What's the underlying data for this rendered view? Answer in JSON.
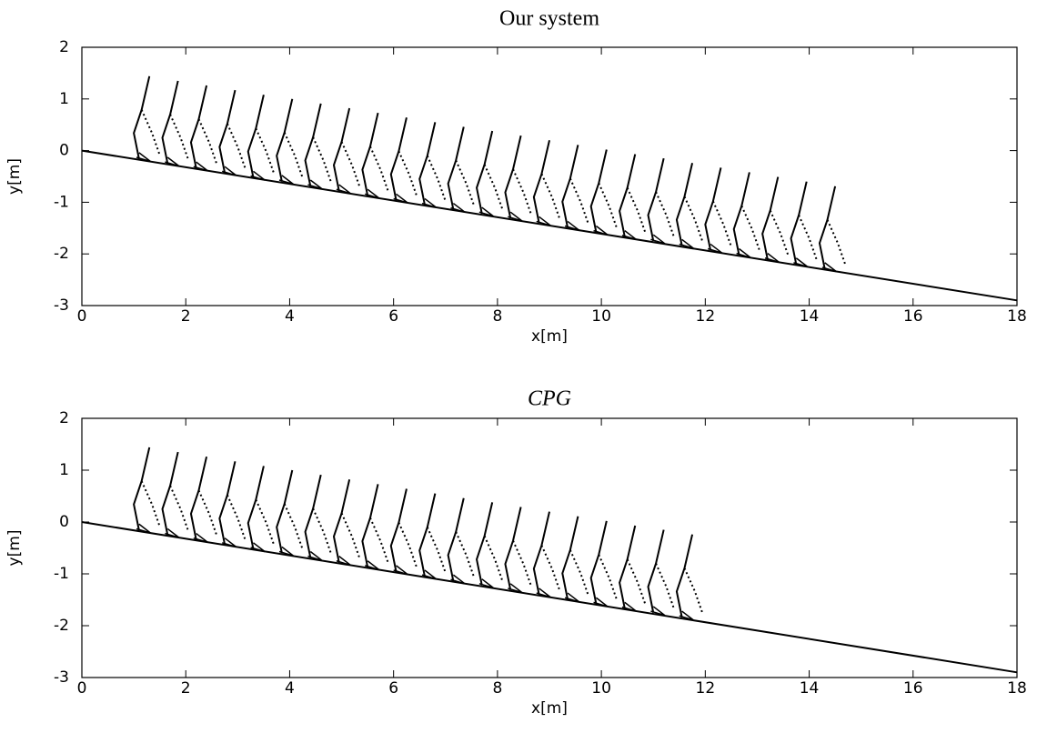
{
  "chart_data": [
    {
      "type": "line",
      "title": "Our system",
      "xlabel": "x[m]",
      "ylabel": "y[m]",
      "xlim": [
        0,
        18
      ],
      "ylim": [
        -3,
        2
      ],
      "xticks": [
        0,
        2,
        4,
        6,
        8,
        10,
        12,
        14,
        16,
        18
      ],
      "yticks": [
        -3,
        -2,
        -1,
        0,
        1,
        2
      ],
      "slope": {
        "x": [
          0,
          18
        ],
        "y": [
          0,
          -2.9
        ]
      },
      "figures": {
        "x": [
          1.0,
          1.55,
          2.1,
          2.65,
          3.2,
          3.75,
          4.3,
          4.85,
          5.4,
          5.95,
          6.5,
          7.05,
          7.6,
          8.15,
          8.7,
          9.25,
          9.8,
          10.35,
          10.9,
          11.45,
          12.0,
          12.55,
          13.1,
          13.65,
          14.2
        ],
        "y": [
          -0.16,
          -0.25,
          -0.34,
          -0.43,
          -0.52,
          -0.6,
          -0.69,
          -0.78,
          -0.87,
          -0.96,
          -1.05,
          -1.14,
          -1.22,
          -1.31,
          -1.4,
          -1.49,
          -1.58,
          -1.67,
          -1.75,
          -1.84,
          -1.93,
          -2.02,
          -2.11,
          -2.2,
          -2.29
        ]
      },
      "color": "#000000",
      "grid": false
    },
    {
      "type": "line",
      "title": "CPG",
      "xlabel": "x[m]",
      "ylabel": "y[m]",
      "xlim": [
        0,
        18
      ],
      "ylim": [
        -3,
        2
      ],
      "xticks": [
        0,
        2,
        4,
        6,
        8,
        10,
        12,
        14,
        16,
        18
      ],
      "yticks": [
        -3,
        -2,
        -1,
        0,
        1,
        2
      ],
      "slope": {
        "x": [
          0,
          18
        ],
        "y": [
          0,
          -2.9
        ]
      },
      "figures": {
        "x": [
          1.0,
          1.55,
          2.1,
          2.65,
          3.2,
          3.75,
          4.3,
          4.85,
          5.4,
          5.95,
          6.5,
          7.05,
          7.6,
          8.15,
          8.7,
          9.25,
          9.8,
          10.35,
          10.9,
          11.45
        ],
        "y": [
          -0.16,
          -0.25,
          -0.34,
          -0.43,
          -0.52,
          -0.6,
          -0.69,
          -0.78,
          -0.87,
          -0.96,
          -1.05,
          -1.14,
          -1.22,
          -1.31,
          -1.4,
          -1.49,
          -1.58,
          -1.67,
          -1.75,
          -1.84
        ]
      },
      "color": "#000000",
      "grid": false
    }
  ]
}
